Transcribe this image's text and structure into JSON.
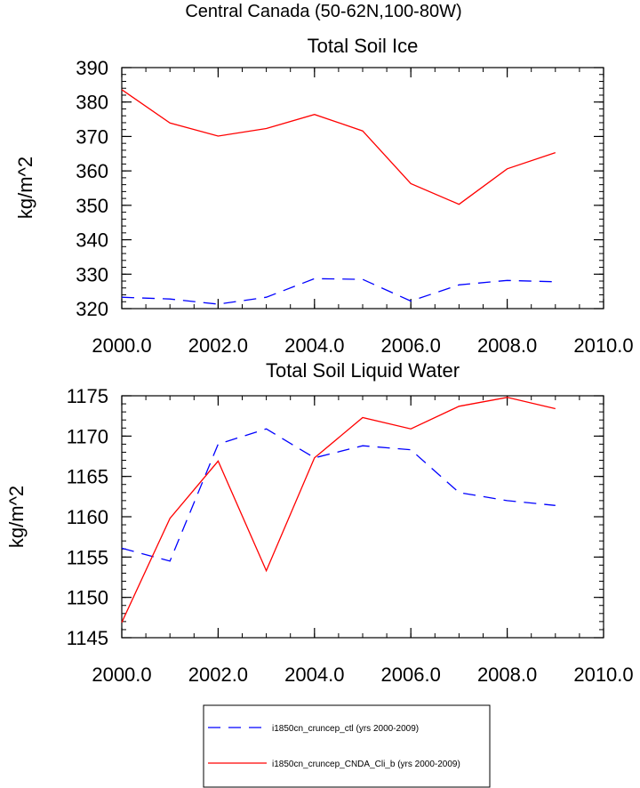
{
  "figure_title": "Central Canada (50-62N,100-80W)",
  "colors": {
    "ctl": "#0000ff",
    "cnda": "#ff0000",
    "axis": "#000000"
  },
  "legend": {
    "entries": [
      {
        "label": "i1850cn_cruncep_ctl (yrs 2000-2009)",
        "color": "#0000ff",
        "dash": "dashed"
      },
      {
        "label": "i1850cn_cruncep_CNDA_Cli_b (yrs 2000-2009)",
        "color": "#ff0000",
        "dash": "solid"
      }
    ]
  },
  "chart_data": [
    {
      "type": "line",
      "title": "Total Soil Ice",
      "xlabel": "",
      "ylabel": "kg/m^2",
      "xlim": [
        2000,
        2010
      ],
      "ylim": [
        320,
        390
      ],
      "xticks": [
        "2000.0",
        "2002.0",
        "2004.0",
        "2006.0",
        "2008.0",
        "2010.0"
      ],
      "yticks": [
        "320",
        "330",
        "340",
        "350",
        "360",
        "370",
        "380",
        "390"
      ],
      "x": [
        2000,
        2001,
        2002,
        2003,
        2004,
        2005,
        2006,
        2007,
        2008,
        2009
      ],
      "series": [
        {
          "name": "i1850cn_cruncep_ctl (yrs 2000-2009)",
          "color": "#0000ff",
          "dash": "dashed",
          "values": [
            323.3,
            322.8,
            321.3,
            323.3,
            328.7,
            328.5,
            322.2,
            326.9,
            328.2,
            327.8
          ]
        },
        {
          "name": "i1850cn_cruncep_CNDA_Cli_b (yrs 2000-2009)",
          "color": "#ff0000",
          "dash": "solid",
          "values": [
            383.6,
            373.9,
            370.1,
            372.3,
            376.4,
            371.6,
            356.3,
            350.3,
            360.6,
            365.3
          ]
        }
      ],
      "grid": false
    },
    {
      "type": "line",
      "title": "Total Soil Liquid Water",
      "xlabel": "",
      "ylabel": "kg/m^2",
      "xlim": [
        2000,
        2010
      ],
      "ylim": [
        1145,
        1175
      ],
      "xticks": [
        "2000.0",
        "2002.0",
        "2004.0",
        "2006.0",
        "2008.0",
        "2010.0"
      ],
      "yticks": [
        "1145",
        "1150",
        "1155",
        "1160",
        "1165",
        "1170",
        "1175"
      ],
      "x": [
        2000,
        2001,
        2002,
        2003,
        2004,
        2005,
        2006,
        2007,
        2008,
        2009
      ],
      "series": [
        {
          "name": "i1850cn_cruncep_ctl (yrs 2000-2009)",
          "color": "#0000ff",
          "dash": "dashed",
          "values": [
            1156.1,
            1154.5,
            1169.0,
            1170.9,
            1167.3,
            1168.8,
            1168.3,
            1163.0,
            1162.0,
            1161.4
          ]
        },
        {
          "name": "i1850cn_cruncep_CNDA_Cli_b (yrs 2000-2009)",
          "color": "#ff0000",
          "dash": "solid",
          "values": [
            1146.9,
            1159.8,
            1166.9,
            1153.3,
            1167.3,
            1172.3,
            1170.9,
            1173.7,
            1174.8,
            1173.4
          ]
        }
      ],
      "grid": false
    }
  ]
}
